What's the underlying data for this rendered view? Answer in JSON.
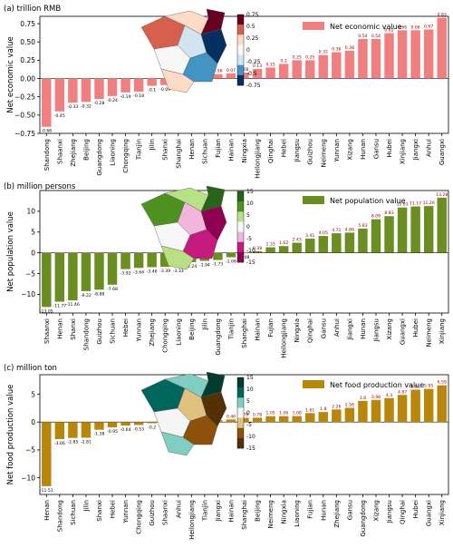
{
  "chart_data": [
    {
      "type": "bar",
      "panel_label": "(a)",
      "unit_label": "trillion RMB",
      "ylabel": "Net economic value",
      "legend": "Net economic value",
      "legend_position": "top-right",
      "color": "#f08080",
      "ylim": [
        -0.75,
        0.85
      ],
      "yticks": [
        -0.75,
        -0.5,
        -0.25,
        0.0,
        0.25,
        0.5,
        0.75
      ],
      "ytick_labels": [
        "−0.75",
        "−0.50",
        "−0.25",
        "0.00",
        "0.25",
        "0.50",
        "0.75"
      ],
      "grid": false,
      "categories": [
        "Shandong",
        "Shaanxi",
        "Zhejiang",
        "Beijing",
        "Guangdong",
        "Liaoning",
        "Chongqing",
        "Tianjin",
        "Jilin",
        "Shanxi",
        "Shanghai",
        "Henan",
        "Sichuan",
        "Fujian",
        "Hainan",
        "Ningxia",
        "Heilongjiang",
        "Qinghai",
        "Hebei",
        "Jiangsu",
        "Guizhou",
        "Neimeng",
        "Yunnan",
        "Xizang",
        "Hunan",
        "Gansu",
        "Hubei",
        "Xinjiang",
        "Jiangxi",
        "Anhui",
        "Guangxi"
      ],
      "values": [
        -0.66,
        -0.45,
        -0.33,
        -0.32,
        -0.28,
        -0.24,
        -0.19,
        -0.18,
        -0.1,
        -0.09,
        -0.04,
        0.04,
        0.06,
        0.06,
        0.07,
        0.08,
        0.13,
        0.15,
        0.2,
        0.25,
        0.25,
        0.32,
        0.36,
        0.38,
        0.54,
        0.54,
        0.62,
        0.66,
        0.66,
        0.67,
        0.83
      ],
      "value_labels": [
        "-0.66",
        "-0.45",
        "-0.33",
        "-0.32",
        "-0.28",
        "-0.24",
        "-0.19",
        "-0.18",
        "-0.1",
        "-0.09",
        "-0.04",
        "0.04",
        "0.06",
        "0.06",
        "0.07",
        "0.08",
        "0.13",
        "0.15",
        "0.2",
        "0.25",
        "0.25",
        "0.32",
        "0.36",
        "0.38",
        "0.54",
        "0.54",
        "0.62",
        "0.66",
        "0.66",
        "0.67",
        "0.83"
      ],
      "inset_colorbar": {
        "ticks": [
          "0.75",
          "0.5",
          "0.25",
          "0",
          "-0.25",
          "-0.5",
          "-0.75"
        ],
        "colors": [
          "#67001f",
          "#d6604d",
          "#fddbc7",
          "#f7f7f7",
          "#d1e5f0",
          "#4393c3",
          "#053061"
        ]
      }
    },
    {
      "type": "bar",
      "panel_label": "(b)",
      "unit_label": "million persons",
      "ylabel": "Net population value",
      "legend": "Net population value",
      "legend_position": "top-right",
      "color": "#6b8e23",
      "ylim": [
        -14.5,
        15
      ],
      "yticks": [
        -10,
        -5,
        0,
        5,
        10
      ],
      "ytick_labels": [
        "−10",
        "−5",
        "0",
        "5",
        "10"
      ],
      "grid": false,
      "categories": [
        "Shaanxi",
        "Henan",
        "Shanxi",
        "Shandong",
        "Guizhou",
        "Sichuan",
        "Hebei",
        "Yunnan",
        "Zhejiang",
        "Chongqing",
        "Liaoning",
        "Beijing",
        "Jilin",
        "Guangdong",
        "Tianjin",
        "Shanghai",
        "Hainan",
        "Fujian",
        "Heilongjiang",
        "Ningxia",
        "Qinghai",
        "Gansu",
        "Anhui",
        "Jiangxi",
        "Hunan",
        "Jiangsu",
        "Xizang",
        "Guangxi",
        "Hubei",
        "Neimeng",
        "Xinjiang"
      ],
      "values": [
        -13.05,
        -11.77,
        -11.46,
        -9.22,
        -8.88,
        -7.68,
        -3.92,
        -3.64,
        -3.46,
        -3.39,
        -3.33,
        -2.24,
        -1.94,
        -1.73,
        -1.06,
        -0.08,
        0.38,
        1.33,
        1.62,
        2.43,
        3.41,
        4.05,
        4.71,
        4.86,
        5.83,
        8.09,
        8.83,
        10.91,
        11.17,
        11.26,
        13.28
      ],
      "value_labels": [
        "-13.05",
        "-11.77",
        "-11.46",
        "-9.22",
        "-8.88",
        "-7.68",
        "-3.92",
        "-3.64",
        "-3.46",
        "-3.39",
        "-3.33",
        "-2.24",
        "-1.94",
        "-1.73",
        "-1.06",
        "-0.08",
        "0.38",
        "1.33",
        "1.62",
        "2.43",
        "3.41",
        "4.05",
        "4.71",
        "4.86",
        "5.83",
        "8.09",
        "8.83",
        "10.91",
        "11.17",
        "11.26",
        "13.28"
      ],
      "inset_colorbar": {
        "ticks": [
          "15",
          "10",
          "5",
          "0",
          "-5",
          "-10",
          "-15"
        ],
        "colors": [
          "#276419",
          "#4d9221",
          "#b8e186",
          "#f7f7f7",
          "#f1b6da",
          "#c51b7d",
          "#8e0152"
        ]
      }
    },
    {
      "type": "bar",
      "panel_label": "(c)",
      "unit_label": "million ton",
      "ylabel": "Net food production value",
      "legend": "Net food production value",
      "legend_position": "top-right",
      "color": "#b8860b",
      "ylim": [
        -13,
        8.5
      ],
      "yticks": [
        -10,
        -5,
        0,
        5
      ],
      "ytick_labels": [
        "−10",
        "−5",
        "0",
        "5"
      ],
      "grid": false,
      "categories": [
        "Henan",
        "Shandong",
        "Sichuan",
        "Jilin",
        "Shanxi",
        "Hebei",
        "Yunnan",
        "Chongqing",
        "Guizhou",
        "Shaanxi",
        "Anhui",
        "Heilongjiang",
        "Tianjin",
        "Jiangxi",
        "Hainan",
        "Shanghai",
        "Beijing",
        "Neimeng",
        "Ningxia",
        "Liaoning",
        "Fujian",
        "Hunan",
        "Zhejiang",
        "Gansu",
        "Guangdong",
        "Xizang",
        "Jiangsu",
        "Qinghai",
        "Hubei",
        "Guangxi",
        "Xinjiang"
      ],
      "values": [
        -11.51,
        -3.06,
        -2.85,
        -2.81,
        -1.38,
        -0.95,
        -0.64,
        -0.53,
        -0.2,
        0.19,
        0.19,
        0.32,
        0.3,
        0.32,
        0.46,
        0.76,
        0.78,
        1.05,
        1.06,
        1.08,
        1.61,
        1.8,
        2.26,
        2.56,
        3.8,
        3.98,
        4.3,
        4.87,
        5.81,
        5.95,
        6.59
      ],
      "value_labels": [
        "-11.51",
        "-3.06",
        "-2.85",
        "-2.81",
        "-1.38",
        "-0.95",
        "-0.64",
        "-0.53",
        "-0.2",
        "0.19",
        "0.19",
        "0.32",
        "0.3",
        "0.32",
        "0.46",
        "0.76",
        "0.78",
        "1.05",
        "1.06",
        "1.08",
        "1.61",
        "1.8",
        "2.26",
        "2.56",
        "3.8",
        "3.98",
        "4.3",
        "4.87",
        "5.81",
        "5.95",
        "6.59"
      ],
      "inset_colorbar": {
        "ticks": [
          "15",
          "10",
          "5",
          "0",
          "-5",
          "-10",
          "-15"
        ],
        "colors": [
          "#003c30",
          "#01665e",
          "#80cdc1",
          "#f5f5f5",
          "#dfc27d",
          "#8c510a",
          "#543005"
        ]
      }
    }
  ]
}
